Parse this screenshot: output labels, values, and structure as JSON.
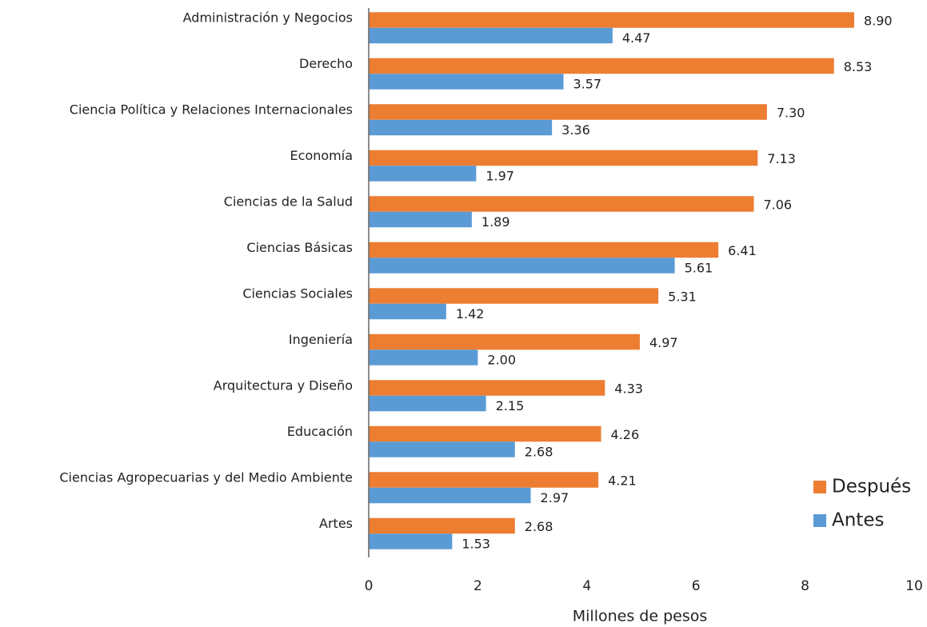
{
  "chart_data": {
    "type": "barh",
    "xlabel": "Millones de pesos",
    "categories": [
      "Administración y Negocios",
      "Derecho",
      "Ciencia Política y Relaciones Internacionales",
      "Economía",
      "Ciencias de la Salud",
      "Ciencias Básicas",
      "Ciencias Sociales",
      "Ingeniería",
      "Arquitectura y Diseño",
      "Educación",
      "Ciencias Agropecuarias y del Medio Ambiente",
      "Artes"
    ],
    "series": [
      {
        "name": "Después",
        "color": "#ED7D31",
        "values": [
          8.9,
          8.53,
          7.3,
          7.13,
          7.06,
          6.41,
          5.31,
          4.97,
          4.33,
          4.26,
          4.21,
          2.68
        ],
        "value_labels": [
          "8.90",
          "8.53",
          "7.30",
          "7.13",
          "7.06",
          "6.41",
          "5.31",
          "4.97",
          "4.33",
          "4.26",
          "4.21",
          "2.68"
        ]
      },
      {
        "name": "Antes",
        "color": "#5B9BD5",
        "values": [
          4.47,
          3.57,
          3.36,
          1.97,
          1.89,
          5.61,
          1.42,
          2.0,
          2.15,
          2.68,
          2.97,
          1.53
        ],
        "value_labels": [
          "4.47",
          "3.57",
          "3.36",
          "1.97",
          "1.89",
          "5.61",
          "1.42",
          "2.00",
          "2.15",
          "2.68",
          "2.97",
          "1.53"
        ]
      }
    ],
    "xlim": [
      0,
      10
    ],
    "xticks": [
      0,
      2,
      4,
      6,
      8,
      10
    ],
    "grid": false,
    "legend": "lower right"
  }
}
